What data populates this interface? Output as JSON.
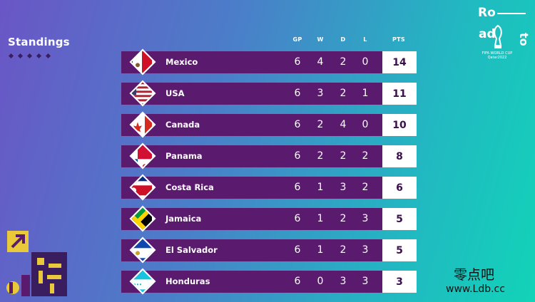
{
  "title": "Standings",
  "logo": {
    "part1": "Ro",
    "part2": "ad",
    "part3": "to",
    "tagline_line1": "FIFA WORLD CUP",
    "tagline_line2": "Qatar2022"
  },
  "columns": [
    "GP",
    "W",
    "D",
    "L",
    "PTS"
  ],
  "teams": [
    {
      "name": "Mexico",
      "gp": "6",
      "w": "4",
      "d": "2",
      "l": "0",
      "pts": "14",
      "flag": "mexico-flag-icon"
    },
    {
      "name": "USA",
      "gp": "6",
      "w": "3",
      "d": "2",
      "l": "1",
      "pts": "11",
      "flag": "usa-flag-icon"
    },
    {
      "name": "Canada",
      "gp": "6",
      "w": "2",
      "d": "4",
      "l": "0",
      "pts": "10",
      "flag": "canada-flag-icon"
    },
    {
      "name": "Panama",
      "gp": "6",
      "w": "2",
      "d": "2",
      "l": "2",
      "pts": "8",
      "flag": "panama-flag-icon"
    },
    {
      "name": "Costa Rica",
      "gp": "6",
      "w": "1",
      "d": "3",
      "l": "2",
      "pts": "6",
      "flag": "costa-rica-flag-icon"
    },
    {
      "name": "Jamaica",
      "gp": "6",
      "w": "1",
      "d": "2",
      "l": "3",
      "pts": "5",
      "flag": "jamaica-flag-icon"
    },
    {
      "name": "El Salvador",
      "gp": "6",
      "w": "1",
      "d": "2",
      "l": "3",
      "pts": "5",
      "flag": "el-salvador-flag-icon"
    },
    {
      "name": "Honduras",
      "gp": "6",
      "w": "0",
      "d": "3",
      "l": "3",
      "pts": "3",
      "flag": "honduras-flag-icon"
    }
  ],
  "watermark": {
    "text": "零点吧",
    "url": "www.Ldb.cc"
  },
  "colors": {
    "row_bg": "#5a1a6e",
    "pts_bg": "#ffffff",
    "pts_text": "#3b0f4d"
  }
}
